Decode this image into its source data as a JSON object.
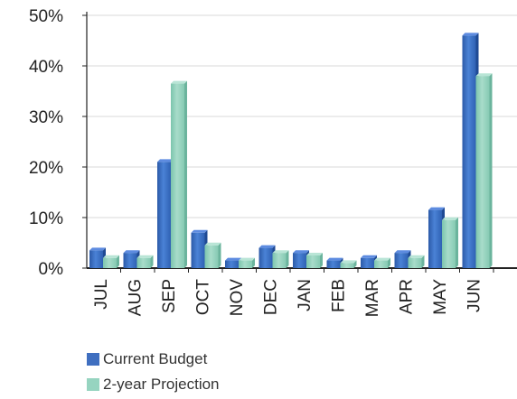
{
  "chart_data": {
    "type": "bar",
    "categories": [
      "JUL",
      "AUG",
      "SEP",
      "OCT",
      "NOV",
      "DEC",
      "JAN",
      "FEB",
      "MAR",
      "APR",
      "MAY",
      "JUN"
    ],
    "series": [
      {
        "name": "Current Budget",
        "color": "#3f6fc0",
        "values": [
          3.5,
          3,
          21,
          7,
          1.5,
          4,
          3,
          1.5,
          2,
          3,
          11.5,
          46
        ]
      },
      {
        "name": "2-year Projection",
        "color": "#96d4c0",
        "values": [
          2,
          2,
          36.5,
          4.5,
          1.5,
          3,
          2.5,
          1,
          1.5,
          2,
          9.5,
          38
        ]
      }
    ],
    "y_ticks": [
      "0%",
      "10%",
      "20%",
      "30%",
      "40%",
      "50%"
    ],
    "ylim": [
      0,
      50
    ],
    "grid": true,
    "legend_position": "bottom-left"
  }
}
